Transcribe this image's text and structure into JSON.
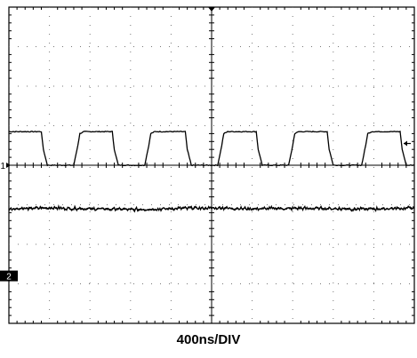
{
  "chart_data": {
    "type": "line",
    "title": "",
    "xlabel": "400ns/DIV",
    "ylabel": "",
    "grid": true,
    "x_unit": "div",
    "y_unit": "div",
    "xlim": [
      0,
      10
    ],
    "ylim": [
      0,
      8
    ],
    "channel_markers": [
      {
        "label": "1",
        "y": 4.0,
        "side": "left"
      },
      {
        "label": "2",
        "y": 1.2,
        "side": "left",
        "style": "filled-box"
      }
    ],
    "series": [
      {
        "channel": "1",
        "x": [
          0.0,
          0.8,
          0.85,
          0.95,
          1.6,
          1.7,
          1.75,
          1.85,
          2.55,
          2.6,
          2.7,
          3.35,
          3.45,
          3.5,
          3.6,
          4.35,
          4.4,
          4.5,
          5.15,
          5.25,
          5.3,
          5.4,
          6.1,
          6.15,
          6.25,
          6.9,
          7.0,
          7.05,
          7.15,
          7.85,
          7.9,
          8.0,
          8.7,
          8.8,
          8.85,
          8.95,
          9.65,
          9.7,
          9.8,
          10.0
        ],
        "y": [
          4.85,
          4.85,
          4.4,
          4.0,
          4.0,
          4.5,
          4.8,
          4.85,
          4.85,
          4.4,
          4.0,
          4.0,
          4.5,
          4.8,
          4.85,
          4.85,
          4.4,
          4.0,
          4.0,
          4.5,
          4.8,
          4.85,
          4.85,
          4.4,
          4.0,
          4.0,
          4.5,
          4.8,
          4.85,
          4.85,
          4.4,
          4.0,
          4.0,
          4.5,
          4.8,
          4.85,
          4.85,
          4.4,
          4.0,
          4.0
        ]
      },
      {
        "channel": "2",
        "x": [
          0.0,
          1.0,
          2.0,
          3.0,
          4.0,
          5.0,
          6.0,
          7.0,
          8.0,
          9.0,
          10.0
        ],
        "y": [
          2.9,
          2.92,
          2.9,
          2.88,
          2.9,
          2.92,
          2.9,
          2.91,
          2.9,
          2.89,
          2.92
        ]
      }
    ]
  }
}
